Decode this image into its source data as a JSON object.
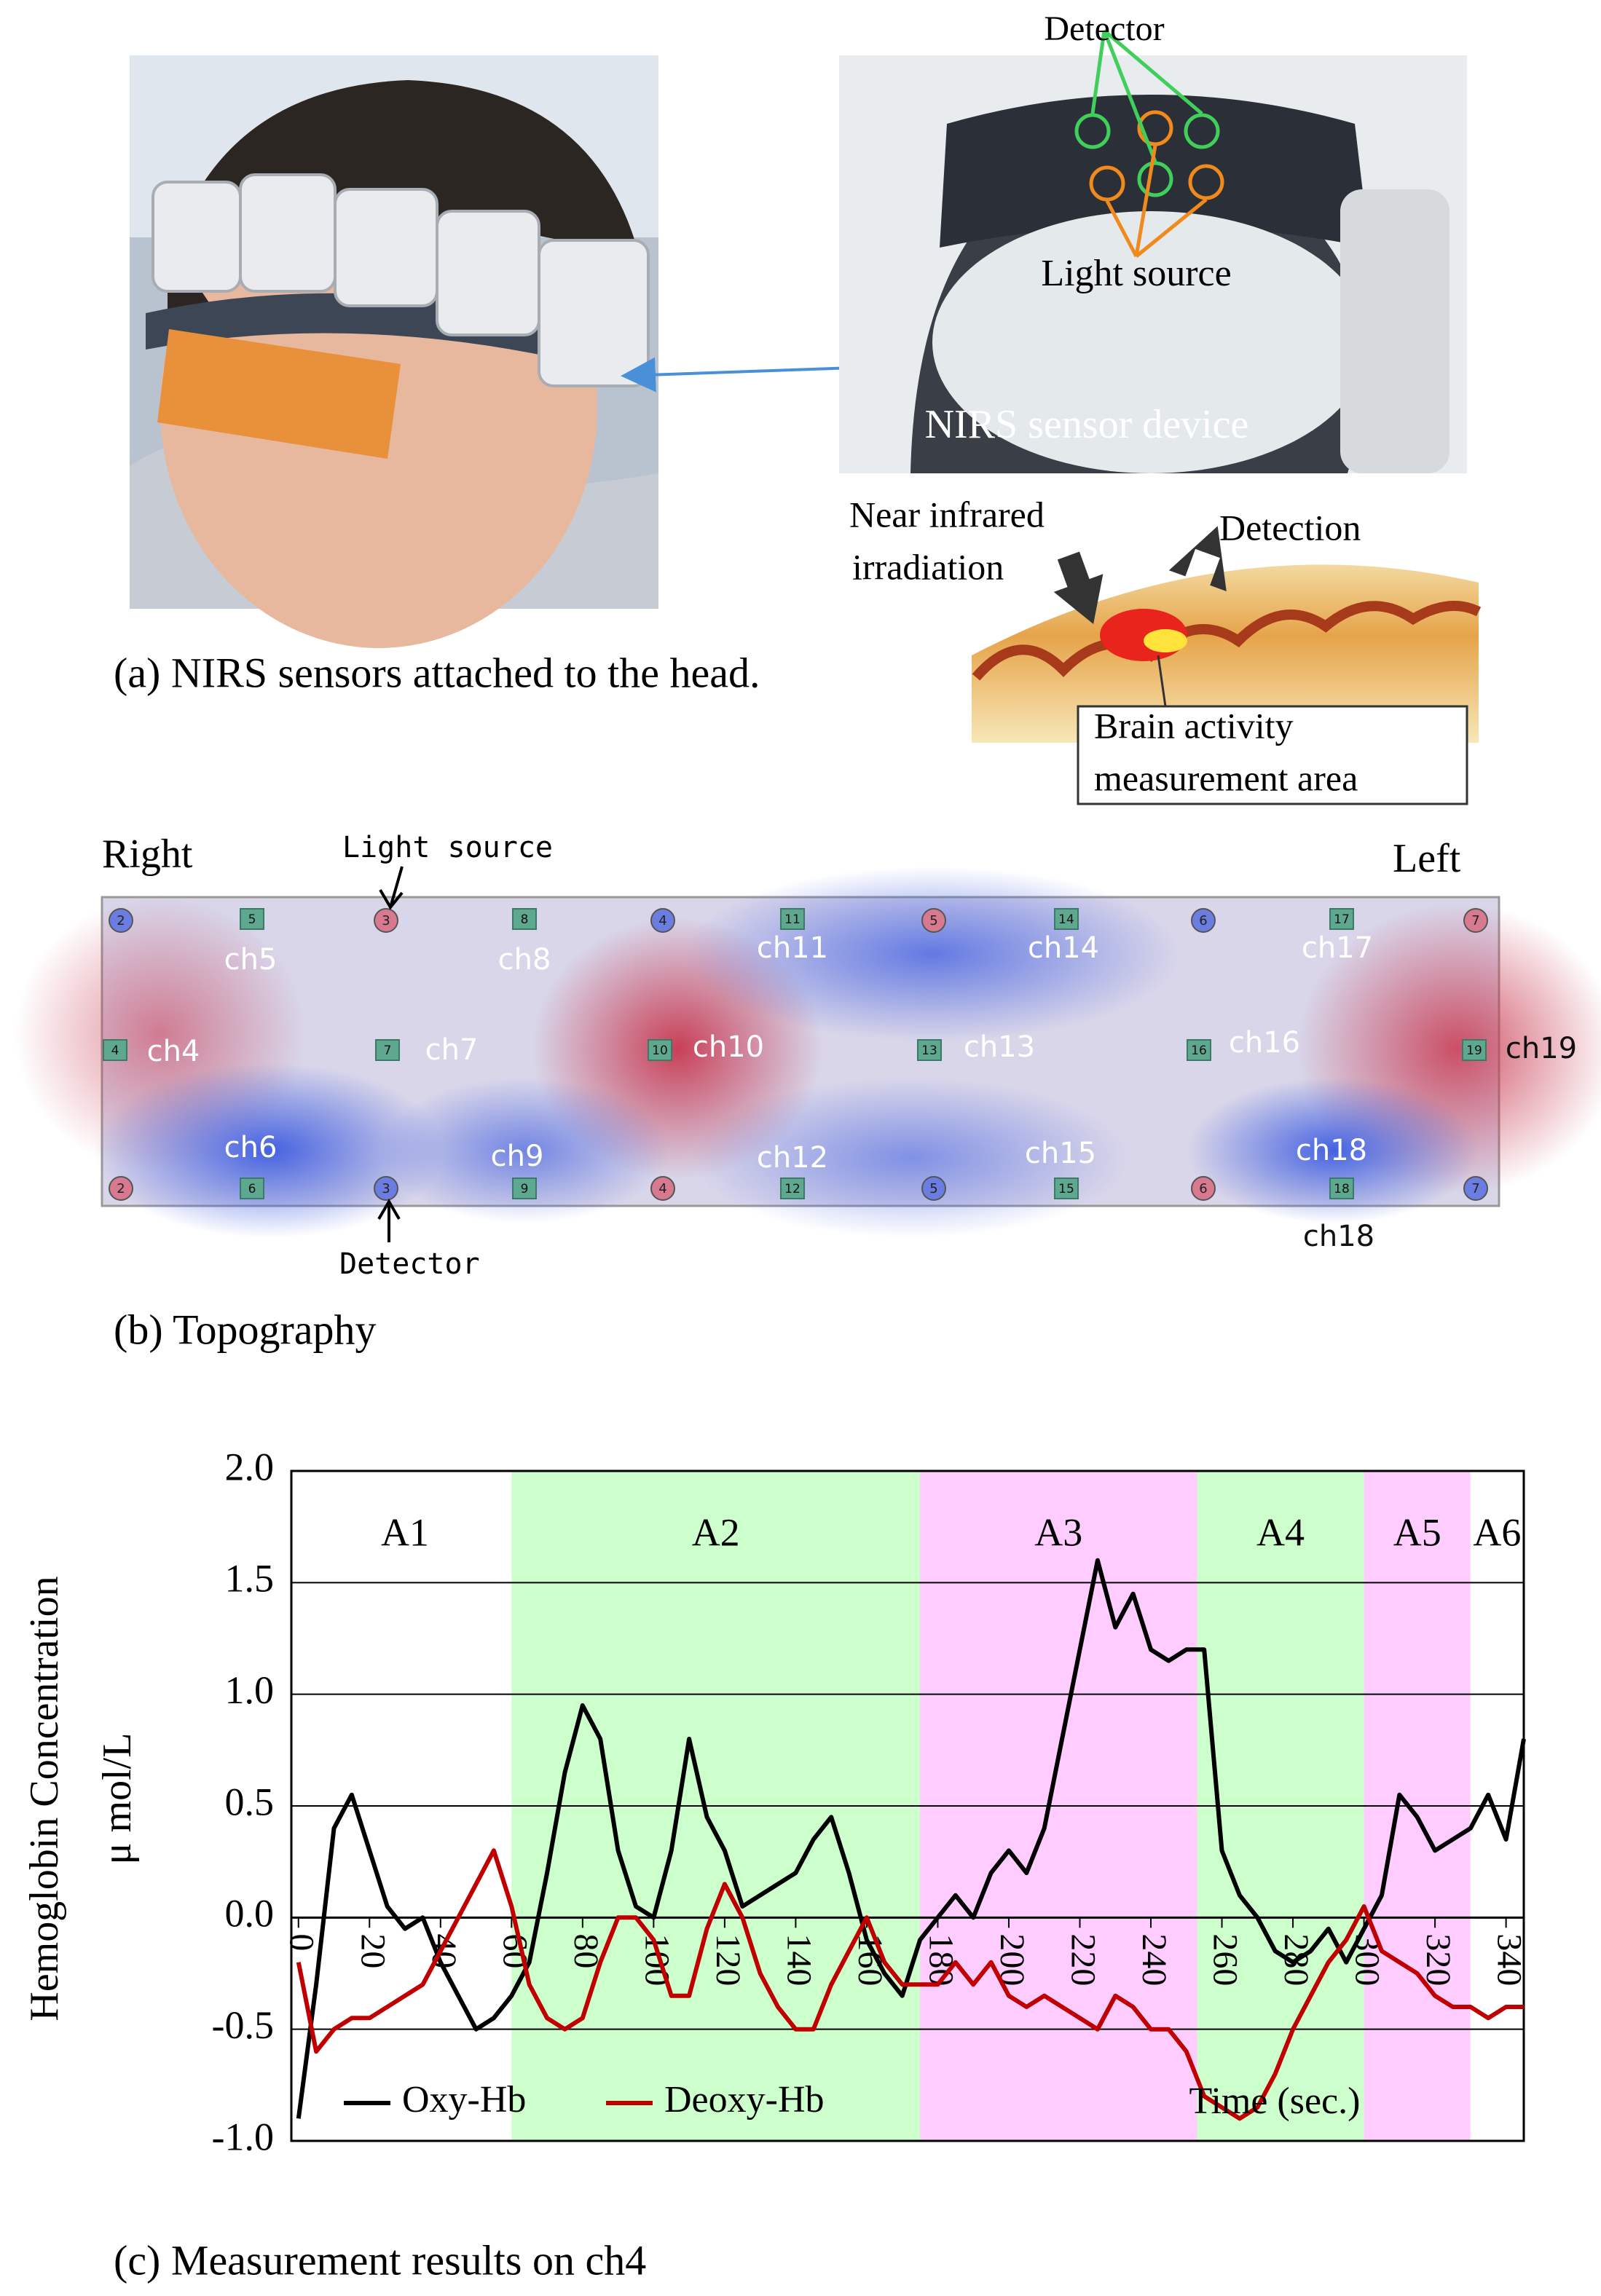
{
  "panel_a": {
    "caption": "(a) NIRS sensors attached to the head.",
    "detector": "Detector",
    "light_source": "Light source",
    "device": "NIRS sensor device",
    "irradiation": [
      "Near infrared",
      "irradiation"
    ],
    "detection": "Detection",
    "area": [
      "Brain activity",
      "measurement area"
    ]
  },
  "panel_b": {
    "caption": "(b) Topography",
    "right": "Right",
    "left": "Left",
    "light_source": "Light source",
    "detector": "Detector",
    "optodes_top": [
      "2",
      "3",
      "4",
      "5",
      "6",
      "7"
    ],
    "optodes_bottom": [
      "2",
      "3",
      "4",
      "5",
      "6",
      "7"
    ],
    "squares_top": [
      "5",
      "8",
      "11",
      "14",
      "17"
    ],
    "squares_middle": [
      "4",
      "7",
      "10",
      "13",
      "16",
      "19"
    ],
    "squares_bottom": [
      "6",
      "9",
      "12",
      "15",
      "18"
    ],
    "channels": [
      "ch5",
      "ch8",
      "ch11",
      "ch14",
      "ch17",
      "ch4",
      "ch7",
      "ch10",
      "ch13",
      "ch16",
      "ch19",
      "ch6",
      "ch9",
      "ch12",
      "ch15",
      "ch18",
      "ch18"
    ]
  },
  "chart_data": {
    "type": "line",
    "caption": "(c) Measurement results on ch4",
    "y_label": [
      "Hemoglobin Concentration",
      "μ mol/L"
    ],
    "x_label": "Time (sec.)",
    "xlim": [
      -2,
      345
    ],
    "xticks": [
      0,
      20,
      40,
      60,
      80,
      100,
      120,
      140,
      160,
      180,
      200,
      220,
      240,
      260,
      280,
      300,
      320,
      340
    ],
    "ylim": [
      -1,
      2
    ],
    "yticks": [
      {
        "value": -1,
        "label": "-1.0"
      },
      -0.5,
      {
        "value": 0,
        "label": "0.0"
      },
      0.5,
      {
        "value": 1,
        "label": "1.0"
      },
      1.5,
      {
        "value": 2,
        "label": "2.0"
      }
    ],
    "grid": true,
    "legend": "lower left",
    "periods": [
      {
        "label": "A1",
        "start": 0,
        "end": 60,
        "color": "#ffffff"
      },
      {
        "label": "A2",
        "start": 60,
        "end": 175,
        "color": "#ccffcc"
      },
      {
        "label": "A3",
        "start": 175,
        "end": 253,
        "color": "#ffccff"
      },
      {
        "label": "A4",
        "start": 253,
        "end": 300,
        "color": "#ccffcc"
      },
      {
        "label": "A5",
        "start": 300,
        "end": 330,
        "color": "#ffccff"
      },
      {
        "label": "A6",
        "start": 330,
        "end": 345,
        "color": "#ffffff"
      }
    ],
    "x": [
      0,
      5,
      10,
      15,
      20,
      25,
      30,
      35,
      40,
      45,
      50,
      55,
      60,
      65,
      70,
      75,
      80,
      85,
      90,
      95,
      100,
      105,
      110,
      115,
      120,
      125,
      130,
      135,
      140,
      145,
      150,
      155,
      160,
      165,
      170,
      175,
      180,
      185,
      190,
      195,
      200,
      205,
      210,
      215,
      220,
      225,
      230,
      235,
      240,
      245,
      250,
      255,
      260,
      265,
      270,
      275,
      280,
      285,
      290,
      295,
      300,
      305,
      310,
      315,
      320,
      325,
      330,
      335,
      340,
      345
    ],
    "series": [
      {
        "name": "Oxy-Hb",
        "color": "#000000",
        "values": [
          -0.9,
          -0.3,
          0.4,
          0.55,
          0.3,
          0.05,
          -0.05,
          0.0,
          -0.2,
          -0.35,
          -0.5,
          -0.45,
          -0.35,
          -0.2,
          0.2,
          0.65,
          0.95,
          0.8,
          0.3,
          0.05,
          0.0,
          0.3,
          0.8,
          0.45,
          0.3,
          0.05,
          0.1,
          0.15,
          0.2,
          0.35,
          0.45,
          0.2,
          -0.1,
          -0.25,
          -0.35,
          -0.1,
          0.0,
          0.1,
          0.0,
          0.2,
          0.3,
          0.2,
          0.4,
          0.8,
          1.2,
          1.6,
          1.3,
          1.45,
          1.2,
          1.15,
          1.2,
          1.2,
          0.3,
          0.1,
          0.0,
          -0.15,
          -0.2,
          -0.15,
          -0.05,
          -0.2,
          -0.05,
          0.1,
          0.55,
          0.45,
          0.3,
          0.35,
          0.4,
          0.55,
          0.35,
          0.8
        ]
      },
      {
        "name": "Deoxy-Hb",
        "color": "#c00000",
        "values": [
          -0.2,
          -0.6,
          -0.5,
          -0.45,
          -0.45,
          -0.4,
          -0.35,
          -0.3,
          -0.15,
          0.0,
          0.15,
          0.3,
          0.05,
          -0.3,
          -0.45,
          -0.5,
          -0.45,
          -0.2,
          0.0,
          0.0,
          -0.1,
          -0.35,
          -0.35,
          -0.05,
          0.15,
          0.0,
          -0.25,
          -0.4,
          -0.5,
          -0.5,
          -0.3,
          -0.15,
          0.0,
          -0.2,
          -0.3,
          -0.3,
          -0.3,
          -0.2,
          -0.3,
          -0.2,
          -0.35,
          -0.4,
          -0.35,
          -0.4,
          -0.45,
          -0.5,
          -0.35,
          -0.4,
          -0.5,
          -0.5,
          -0.6,
          -0.8,
          -0.85,
          -0.9,
          -0.85,
          -0.7,
          -0.5,
          -0.35,
          -0.2,
          -0.1,
          0.05,
          -0.15,
          -0.2,
          -0.25,
          -0.35,
          -0.4,
          -0.4,
          -0.45,
          -0.4,
          -0.4
        ]
      }
    ]
  }
}
